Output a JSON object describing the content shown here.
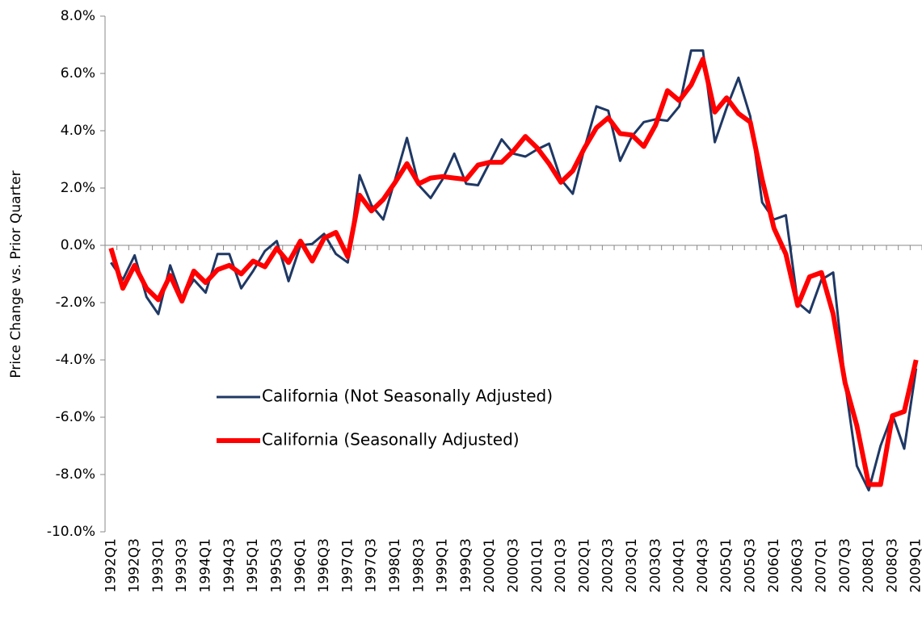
{
  "chart_data": {
    "type": "line",
    "ylabel": "Price Change vs. Prior Quarter",
    "categories": [
      "1992Q1",
      null,
      "1992Q3",
      null,
      "1993Q1",
      null,
      "1993Q3",
      null,
      "1994Q1",
      null,
      "1994Q3",
      null,
      "1995Q1",
      null,
      "1995Q3",
      null,
      "1996Q1",
      null,
      "1996Q3",
      null,
      "1997Q1",
      null,
      "1997Q3",
      null,
      "1998Q1",
      null,
      "1998Q3",
      null,
      "1999Q1",
      null,
      "1999Q3",
      null,
      "2000Q1",
      null,
      "2000Q3",
      null,
      "2001Q1",
      null,
      "2001Q3",
      null,
      "2002Q1",
      null,
      "2002Q3",
      null,
      "2003Q1",
      null,
      "2003Q3",
      null,
      "2004Q1",
      null,
      "2004Q3",
      null,
      "2005Q1",
      null,
      "2005Q3",
      null,
      "2006Q1",
      null,
      "2006Q3",
      null,
      "2007Q1",
      null,
      "2007Q3",
      null,
      "2008Q1",
      null,
      "2008Q3",
      null,
      "2009Q1"
    ],
    "series": [
      {
        "name": "California (Not Seasonally Adjusted)",
        "color": "#1f3864",
        "width": 3,
        "values": [
          -0.6,
          -1.2,
          -0.35,
          -1.8,
          -2.4,
          -0.7,
          -1.85,
          -1.2,
          -1.65,
          -0.3,
          -0.3,
          -1.5,
          -0.9,
          -0.2,
          0.15,
          -1.25,
          0.0,
          0.05,
          0.4,
          -0.3,
          -0.6,
          2.45,
          1.4,
          0.9,
          2.3,
          3.75,
          2.1,
          1.65,
          2.3,
          3.2,
          2.15,
          2.1,
          2.9,
          3.7,
          3.2,
          3.1,
          3.35,
          3.55,
          2.3,
          1.8,
          3.4,
          4.85,
          4.7,
          2.95,
          3.8,
          4.3,
          4.4,
          4.35,
          4.85,
          6.8,
          6.8,
          3.6,
          4.8,
          5.85,
          4.5,
          1.5,
          0.9,
          1.05,
          -2.0,
          -2.35,
          -1.2,
          -0.95,
          -4.8,
          -7.7,
          -8.55,
          -7.0,
          -5.9,
          -7.1,
          -4.3
        ]
      },
      {
        "name": "California (Seasonally Adjusted)",
        "color": "#ff0000",
        "width": 6,
        "values": [
          -0.1,
          -1.5,
          -0.7,
          -1.5,
          -1.9,
          -1.05,
          -1.95,
          -0.9,
          -1.3,
          -0.85,
          -0.7,
          -1.0,
          -0.55,
          -0.75,
          -0.1,
          -0.6,
          0.15,
          -0.55,
          0.25,
          0.45,
          -0.4,
          1.75,
          1.2,
          1.6,
          2.2,
          2.85,
          2.15,
          2.35,
          2.4,
          2.35,
          2.3,
          2.8,
          2.9,
          2.9,
          3.3,
          3.8,
          3.4,
          2.85,
          2.2,
          2.6,
          3.4,
          4.1,
          4.45,
          3.9,
          3.85,
          3.45,
          4.2,
          5.4,
          5.05,
          5.6,
          6.5,
          4.65,
          5.15,
          4.6,
          4.3,
          2.3,
          0.6,
          -0.3,
          -2.1,
          -1.1,
          -0.95,
          -2.4,
          -4.8,
          -6.3,
          -8.35,
          -8.35,
          -5.95,
          -5.8,
          -4.0
        ]
      }
    ],
    "ylim": [
      -10,
      8
    ],
    "yticks": [
      {
        "value": -10,
        "label": "-10.0%"
      },
      {
        "value": -8,
        "label": "-8.0%"
      },
      {
        "value": -6,
        "label": "-6.0%"
      },
      {
        "value": -4,
        "label": "-4.0%"
      },
      {
        "value": -2,
        "label": "-2.0%"
      },
      {
        "value": 0,
        "label": "0.0%"
      },
      {
        "value": 2,
        "label": "2.0%"
      },
      {
        "value": 4,
        "label": "4.0%"
      },
      {
        "value": 6,
        "label": "6.0%"
      },
      {
        "value": 8,
        "label": "8.0%"
      }
    ],
    "grid": false
  }
}
